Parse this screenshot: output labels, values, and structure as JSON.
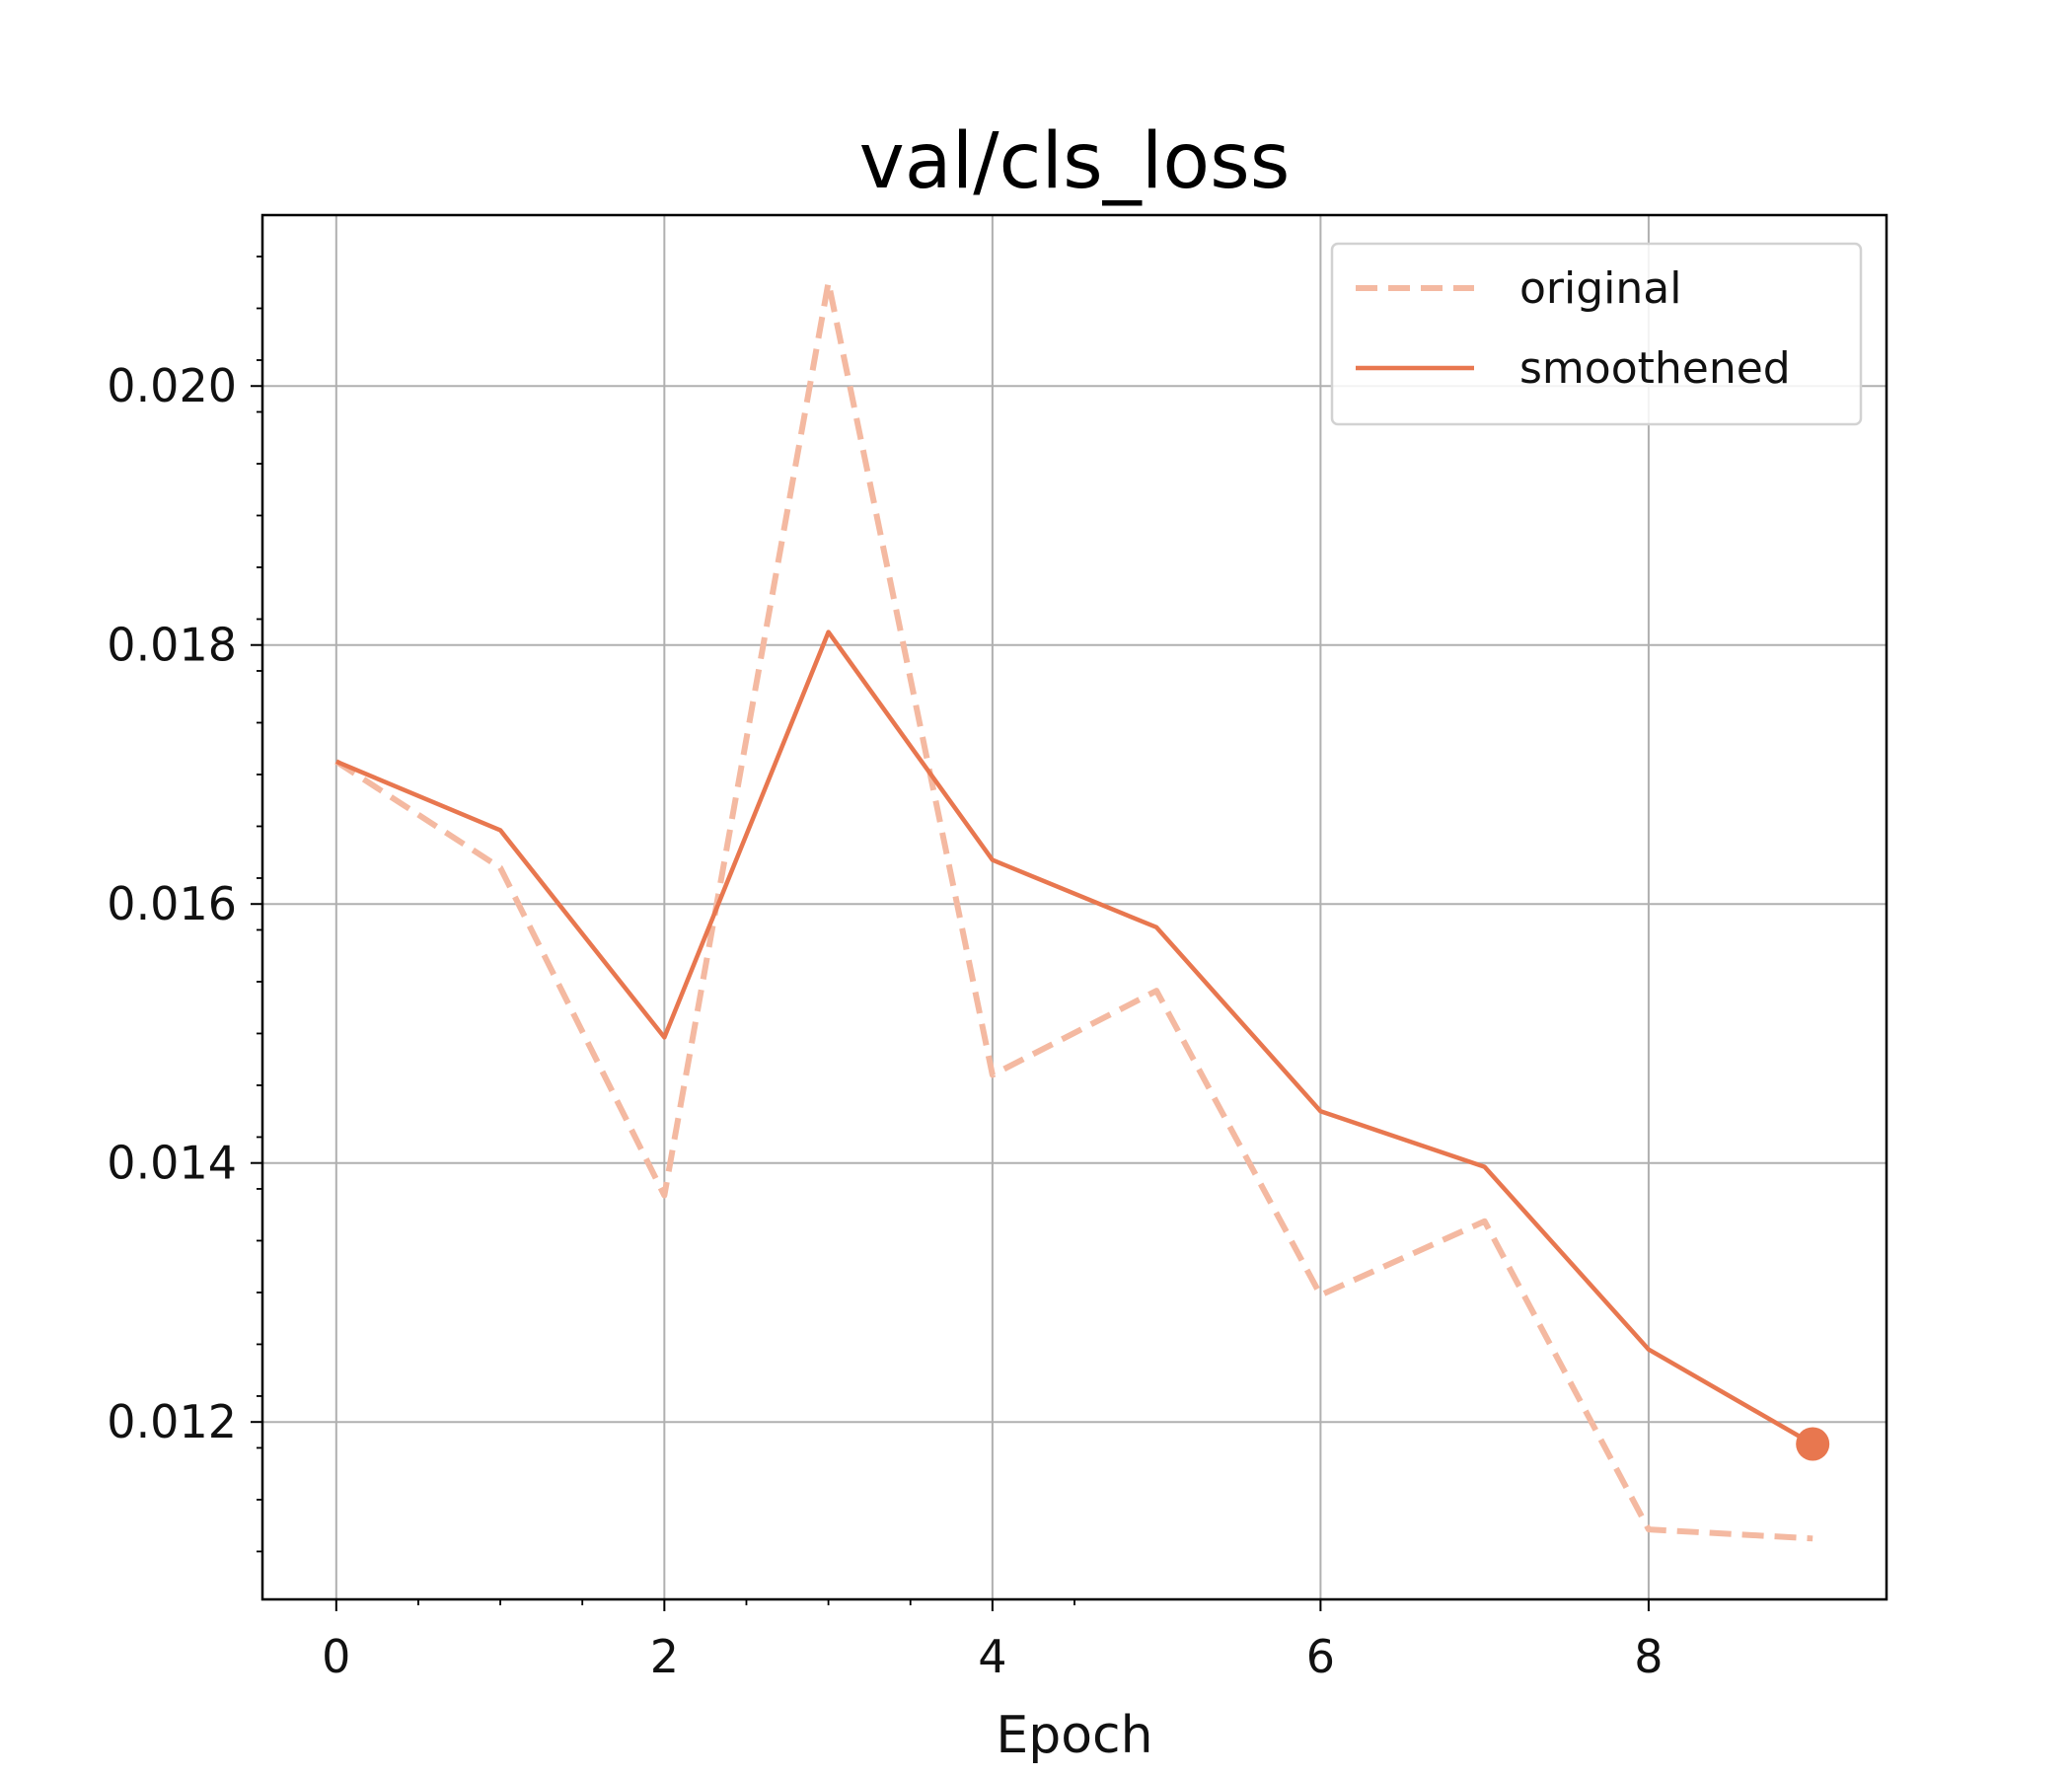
{
  "chart_data": {
    "type": "line",
    "title": "val/cls_loss",
    "xlabel": "Epoch",
    "ylabel": "",
    "xlim": [
      -0.45,
      9.45
    ],
    "ylim": [
      0.01063,
      0.02132
    ],
    "grid": true,
    "legend_placement": "top-right",
    "x_ticks": [
      0,
      2,
      4,
      6,
      8
    ],
    "x_tick_labels": [
      "0",
      "2",
      "4",
      "6",
      "8"
    ],
    "y_ticks": [
      0.012,
      0.014,
      0.016,
      0.018,
      0.02
    ],
    "y_tick_labels": [
      "0.012",
      "0.014",
      "0.016",
      "0.018",
      "0.020"
    ],
    "x": [
      0,
      1,
      2,
      3,
      4,
      5,
      6,
      7,
      8,
      9
    ],
    "series": [
      {
        "name": "original",
        "style": "dashed",
        "color": "#f4b9a1",
        "values": [
          0.0171,
          0.01628,
          0.01375,
          0.0208,
          0.01468,
          0.01533,
          0.01298,
          0.01355,
          0.01117,
          0.0111
        ]
      },
      {
        "name": "smoothened",
        "style": "solid",
        "color": "#e8774f",
        "values": [
          0.0171,
          0.01657,
          0.01497,
          0.0181,
          0.01634,
          0.01582,
          0.0144,
          0.01397,
          0.01256,
          0.01183
        ],
        "end_marker": true
      }
    ]
  }
}
